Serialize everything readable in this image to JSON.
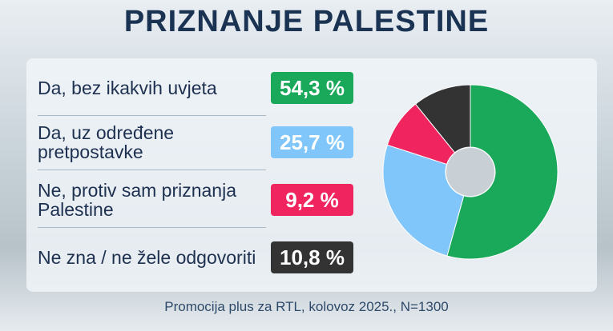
{
  "chart_data": {
    "type": "donut",
    "title": "PRIZNANJE PALESTINE",
    "categories": [
      "Da, bez ikakvih uvjeta",
      "Da, uz određene pretpostavke",
      "Ne, protiv sam priznanja Palestine",
      "Ne zna / ne žele odgovoriti"
    ],
    "values": [
      54.3,
      25.7,
      9.2,
      10.8
    ],
    "value_labels": [
      "54,3 %",
      "25,7 %",
      "9,2 %",
      "10,8 %"
    ],
    "colors": [
      "#1aa85a",
      "#80c6fa",
      "#f0245e",
      "#333333"
    ],
    "source": "Promocija plus za RTL, kolovoz 2025., N=1300"
  }
}
